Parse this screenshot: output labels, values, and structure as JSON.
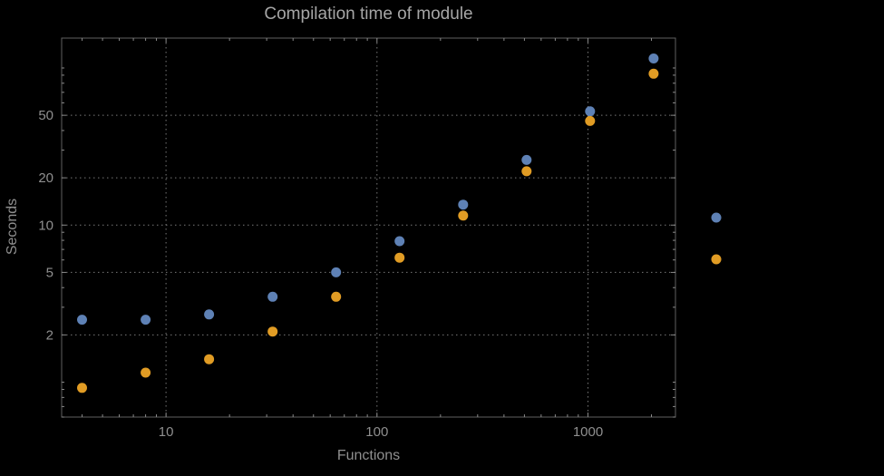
{
  "chart_data": {
    "type": "scatter",
    "title": "Compilation time of module",
    "xlabel": "Functions",
    "ylabel": "Seconds",
    "x_scale": "log",
    "y_scale": "log",
    "xlim": [
      3.2,
      2600
    ],
    "ylim": [
      0.6,
      155
    ],
    "x_ticks": [
      10,
      100,
      1000
    ],
    "y_ticks": [
      2,
      5,
      10,
      20,
      50
    ],
    "grid": "dotted",
    "x": [
      4,
      8,
      16,
      32,
      64,
      128,
      256,
      512,
      1024,
      2048
    ],
    "series": [
      {
        "name": "series-blue",
        "color": "#5E81B5",
        "values": [
          2.5,
          2.5,
          2.7,
          3.5,
          5.0,
          7.9,
          13.5,
          26,
          53,
          115
        ]
      },
      {
        "name": "series-orange",
        "color": "#E19C24",
        "values": [
          0.92,
          1.15,
          1.4,
          2.1,
          3.5,
          6.2,
          11.5,
          22,
          46,
          92
        ]
      }
    ],
    "legend": {
      "position": "right-of-frame",
      "markers": [
        {
          "series": "series-blue",
          "color": "#5E81B5"
        },
        {
          "series": "series-orange",
          "color": "#E19C24"
        }
      ]
    },
    "colors": {
      "background": "#000000",
      "title_text": "#a6a6a6",
      "label_text": "#8f8f8f",
      "grid": "#787878",
      "frame": "#606060",
      "tick": "#8a8a8a"
    },
    "point_radius_px": 5.5
  }
}
